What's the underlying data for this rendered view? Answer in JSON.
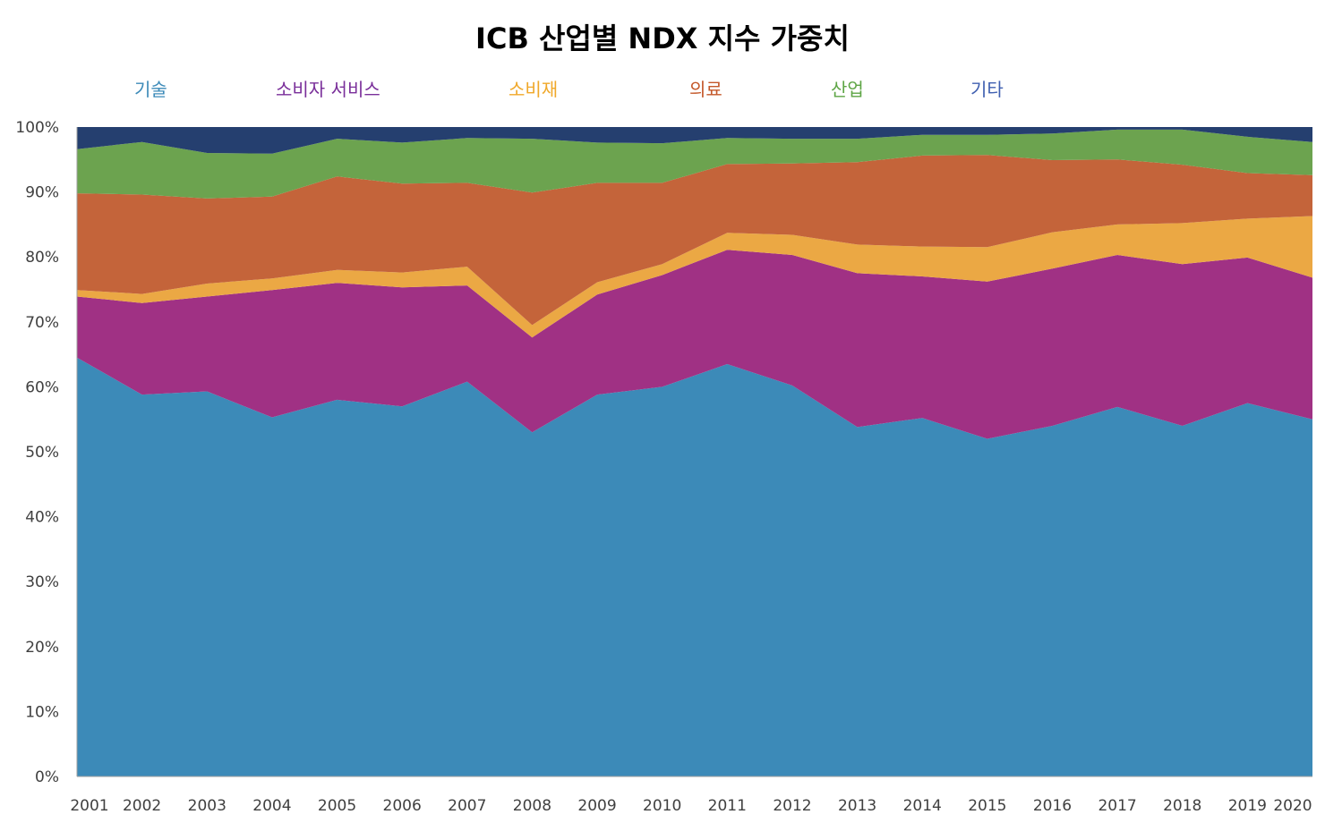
{
  "chart_data": {
    "type": "area",
    "stacked": true,
    "title": "ICB 산업별 NDX 지수 가중치",
    "xlabel": "",
    "ylabel": "",
    "ylim": [
      0,
      100
    ],
    "y_ticks": [
      "0%",
      "10%",
      "20%",
      "30%",
      "40%",
      "50%",
      "60%",
      "70%",
      "80%",
      "90%",
      "100%"
    ],
    "categories": [
      "2001",
      "2002",
      "2003",
      "2004",
      "2005",
      "2006",
      "2007",
      "2008",
      "2009",
      "2010",
      "2011",
      "2012",
      "2013",
      "2014",
      "2015",
      "2016",
      "2017",
      "2018",
      "2019",
      "2020"
    ],
    "series": [
      {
        "name": "기술",
        "color": "#3c8ab8",
        "values": [
          64.5,
          58.8,
          59.3,
          55.3,
          58.0,
          57.0,
          60.8,
          53.0,
          58.8,
          60.0,
          63.5,
          60.2,
          53.8,
          55.2,
          52.0,
          54.0,
          56.9,
          54.0,
          57.5,
          55.0
        ]
      },
      {
        "name": "소비자 서비스",
        "color": "#a03184",
        "values": [
          9.4,
          14.1,
          14.6,
          19.6,
          18.0,
          18.3,
          14.8,
          14.6,
          15.4,
          17.2,
          17.6,
          20.1,
          23.7,
          21.8,
          24.2,
          24.2,
          23.4,
          24.9,
          22.4,
          21.8
        ]
      },
      {
        "name": "소비재",
        "color": "#eba844",
        "values": [
          1.0,
          1.4,
          2.0,
          1.8,
          2.0,
          2.3,
          2.9,
          1.9,
          1.9,
          1.7,
          2.6,
          3.1,
          4.4,
          4.6,
          5.3,
          5.6,
          4.7,
          6.3,
          6.0,
          9.5
        ]
      },
      {
        "name": "의료",
        "color": "#c4643a",
        "values": [
          14.9,
          15.3,
          13.1,
          12.6,
          14.4,
          13.7,
          12.9,
          20.4,
          15.3,
          12.5,
          10.6,
          11.0,
          12.7,
          14.0,
          14.2,
          11.1,
          10.0,
          9.0,
          7.0,
          6.3
        ]
      },
      {
        "name": "산업",
        "color": "#6ca34f",
        "values": [
          6.8,
          8.1,
          7.0,
          6.6,
          5.8,
          6.3,
          6.9,
          8.3,
          6.2,
          6.1,
          4.0,
          3.8,
          3.6,
          3.2,
          3.1,
          4.1,
          4.6,
          5.4,
          5.6,
          5.1
        ]
      },
      {
        "name": "기타",
        "color": "#253f6f",
        "values": [
          3.4,
          2.3,
          4.0,
          4.1,
          1.8,
          2.4,
          1.7,
          1.8,
          2.4,
          2.5,
          1.7,
          1.8,
          1.8,
          1.2,
          1.2,
          1.0,
          0.4,
          0.4,
          1.5,
          2.3
        ]
      }
    ]
  }
}
